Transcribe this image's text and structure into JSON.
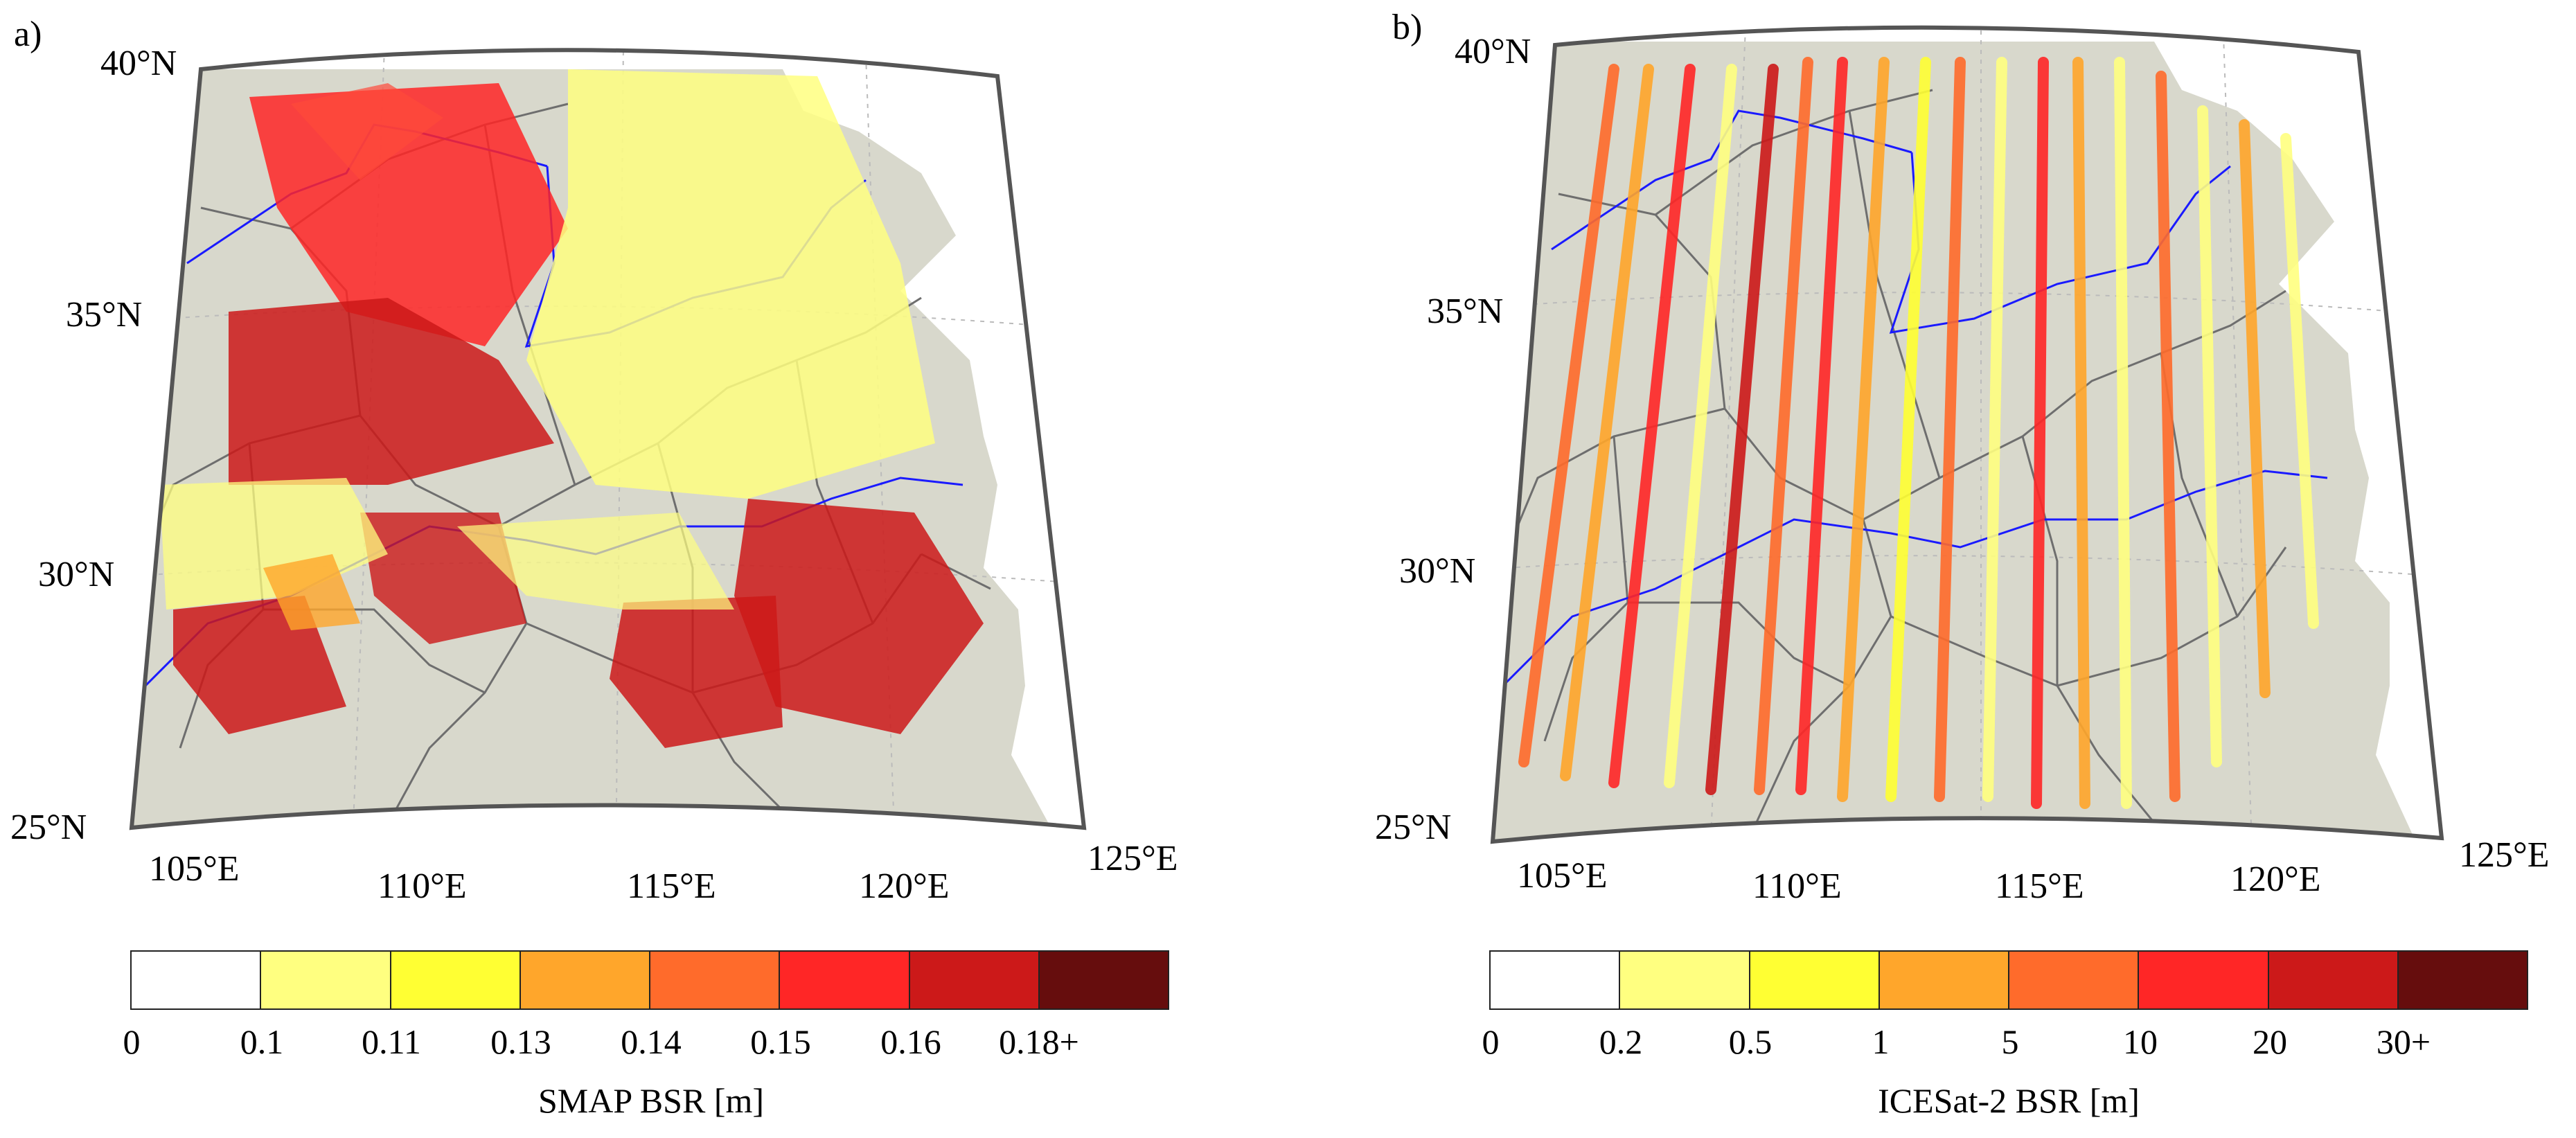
{
  "panels": [
    {
      "panel_label": "a)",
      "lat_labels": [
        "40°N",
        "35°N",
        "30°N",
        "25°N"
      ],
      "lon_labels": [
        "105°E",
        "110°E",
        "115°E",
        "120°E",
        "125°E"
      ],
      "colorbar": {
        "title": "SMAP BSR [m]",
        "ticks": [
          "0",
          "0.1",
          "0.11",
          "0.13",
          "0.14",
          "0.15",
          "0.16",
          "0.18+"
        ],
        "colors": [
          "#ffffff",
          "#ffff80",
          "#ffff33",
          "#ffa62b",
          "#ff6b2b",
          "#ff2626",
          "#cc1919",
          "#660d0d"
        ]
      }
    },
    {
      "panel_label": "b)",
      "lat_labels": [
        "40°N",
        "35°N",
        "30°N",
        "25°N"
      ],
      "lon_labels": [
        "105°E",
        "110°E",
        "115°E",
        "120°E",
        "125°E"
      ],
      "colorbar": {
        "title": "ICESat-2 BSR [m]",
        "ticks": [
          "0",
          "0.2",
          "0.5",
          "1",
          "5",
          "10",
          "20",
          "30+"
        ],
        "colors": [
          "#ffffff",
          "#ffff80",
          "#ffff33",
          "#ffa62b",
          "#ff6b2b",
          "#ff2626",
          "#cc1919",
          "#660d0d"
        ]
      }
    }
  ],
  "map_colors": {
    "land": "#d8d8cc",
    "sea": "#ffffff",
    "river": "#1a1aff",
    "boundary": "#6e6e6e",
    "frame": "#555555"
  }
}
